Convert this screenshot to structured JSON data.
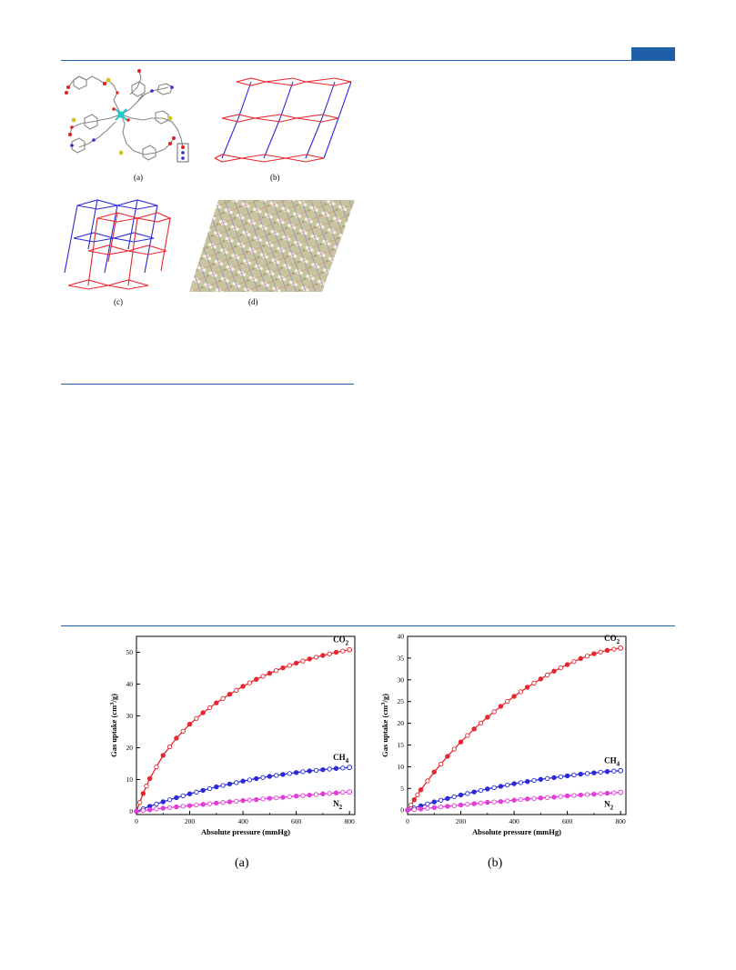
{
  "header": {
    "accent_color": "#1f5fa8"
  },
  "figure_top": {
    "panels": [
      {
        "id": "a",
        "label": "(a)",
        "content": "crystal-structure"
      },
      {
        "id": "b",
        "label": "(b)",
        "content": "2d-network"
      },
      {
        "id": "c",
        "label": "(c)",
        "content": "interpenetrated-network"
      },
      {
        "id": "d",
        "label": "(d)",
        "content": "packing-view"
      }
    ],
    "net_colors": {
      "red": "#e8262d",
      "blue": "#2a2ad8"
    }
  },
  "figure_bottom": {
    "labels": [
      "(a)",
      "(b)"
    ]
  },
  "chart_data": [
    {
      "type": "scatter",
      "panel": "(a)",
      "xlabel": "Absolute pressure (mmHg)",
      "ylabel": "Gas uptake (cm3/g)",
      "xlim": [
        0,
        820
      ],
      "ylim": [
        -1,
        55
      ],
      "xticks": [
        0,
        200,
        400,
        600,
        800
      ],
      "yticks": [
        0,
        10,
        20,
        30,
        40,
        50
      ],
      "grid": false,
      "series": [
        {
          "name": "CO2",
          "color": "#e8262d",
          "x": [
            0,
            25,
            50,
            100,
            150,
            200,
            250,
            300,
            350,
            400,
            450,
            500,
            550,
            600,
            650,
            700,
            750,
            800
          ],
          "y": [
            0,
            5.6,
            10.3,
            17.6,
            23.0,
            27.4,
            31.0,
            34.1,
            36.8,
            39.3,
            41.5,
            43.4,
            45.1,
            46.6,
            47.9,
            49.0,
            50.0,
            50.8
          ]
        },
        {
          "name": "CH4",
          "color": "#2a2ad8",
          "x": [
            0,
            50,
            100,
            150,
            200,
            250,
            300,
            350,
            400,
            450,
            500,
            550,
            600,
            650,
            700,
            750,
            800
          ],
          "y": [
            0,
            1.6,
            3.0,
            4.3,
            5.5,
            6.6,
            7.7,
            8.6,
            9.5,
            10.3,
            11.0,
            11.6,
            12.2,
            12.7,
            13.1,
            13.5,
            13.8
          ]
        },
        {
          "name": "N2",
          "color": "#e23cd9",
          "x": [
            0,
            50,
            100,
            150,
            200,
            250,
            300,
            350,
            400,
            450,
            500,
            550,
            600,
            650,
            700,
            750,
            800
          ],
          "y": [
            0,
            0.5,
            1.0,
            1.4,
            1.8,
            2.2,
            2.6,
            3.0,
            3.4,
            3.7,
            4.1,
            4.4,
            4.8,
            5.1,
            5.5,
            5.8,
            6.1
          ]
        }
      ]
    },
    {
      "type": "scatter",
      "panel": "(b)",
      "xlabel": "Absolute pressure (mmHg)",
      "ylabel": "Gas uptake (cm3/g)",
      "xlim": [
        0,
        820
      ],
      "ylim": [
        -1,
        40
      ],
      "xticks": [
        0,
        200,
        400,
        600,
        800
      ],
      "yticks": [
        0,
        5,
        10,
        15,
        20,
        25,
        30,
        35,
        40
      ],
      "grid": false,
      "series": [
        {
          "name": "CO2",
          "color": "#e8262d",
          "x": [
            0,
            25,
            50,
            100,
            150,
            200,
            250,
            300,
            350,
            400,
            450,
            500,
            550,
            600,
            650,
            700,
            750,
            800
          ],
          "y": [
            0,
            2.4,
            4.7,
            8.8,
            12.4,
            15.7,
            18.7,
            21.4,
            23.9,
            26.2,
            28.3,
            30.2,
            32.0,
            33.5,
            34.9,
            36.0,
            36.8,
            37.3
          ]
        },
        {
          "name": "CH4",
          "color": "#2a2ad8",
          "x": [
            0,
            50,
            100,
            150,
            200,
            250,
            300,
            350,
            400,
            450,
            500,
            550,
            600,
            650,
            700,
            750,
            800
          ],
          "y": [
            0,
            1.0,
            1.9,
            2.7,
            3.5,
            4.2,
            4.9,
            5.5,
            6.1,
            6.6,
            7.1,
            7.5,
            7.9,
            8.3,
            8.6,
            8.9,
            9.1
          ]
        },
        {
          "name": "N2",
          "color": "#e23cd9",
          "x": [
            0,
            50,
            100,
            150,
            200,
            250,
            300,
            350,
            400,
            450,
            500,
            550,
            600,
            650,
            700,
            750,
            800
          ],
          "y": [
            0,
            0.3,
            0.6,
            0.9,
            1.2,
            1.5,
            1.8,
            2.0,
            2.3,
            2.6,
            2.8,
            3.0,
            3.3,
            3.5,
            3.7,
            3.9,
            4.1
          ]
        }
      ]
    }
  ]
}
